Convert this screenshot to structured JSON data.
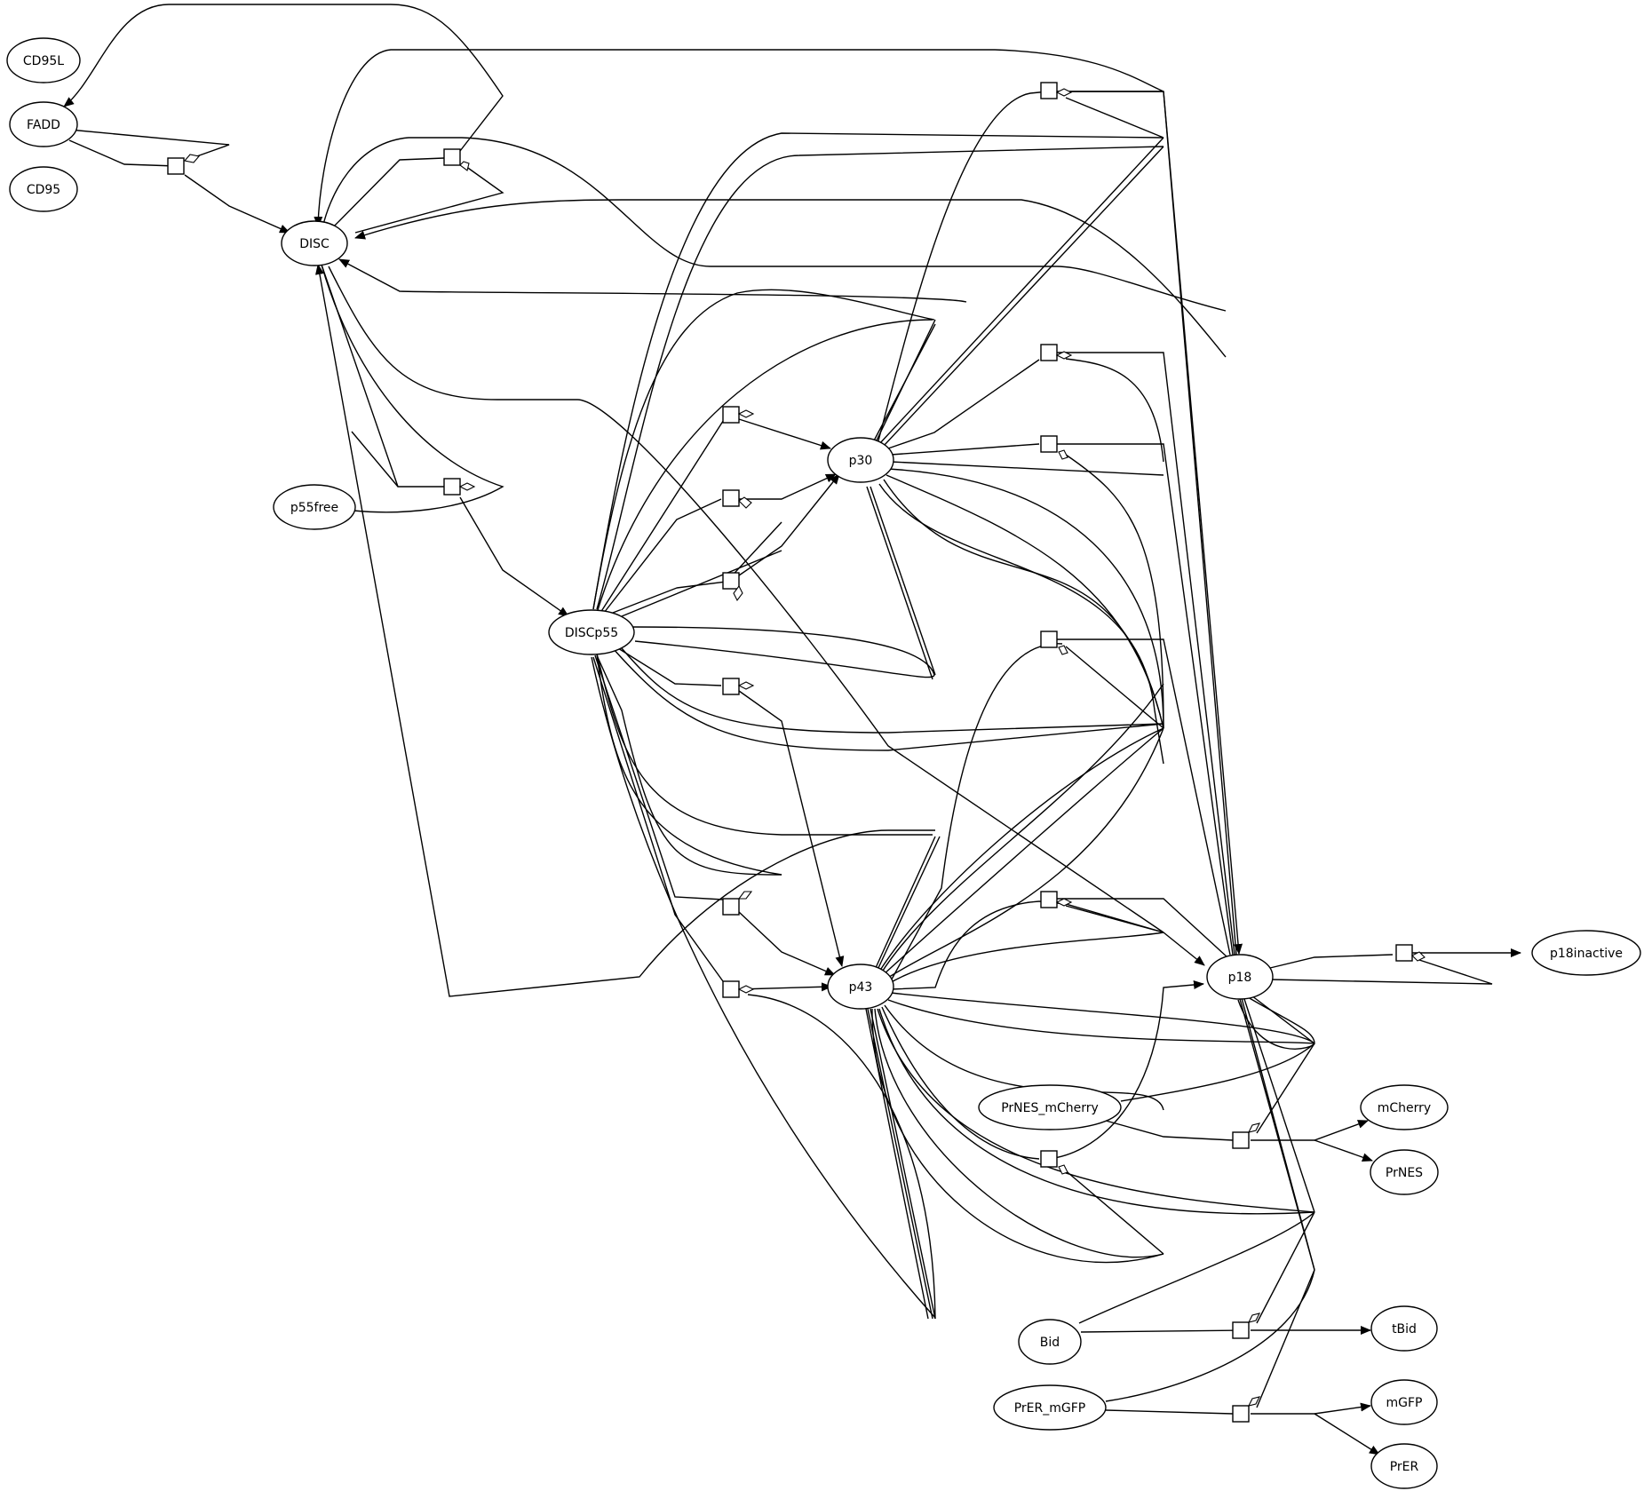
{
  "diagram": {
    "nodes": [
      {
        "id": "CD95L",
        "label": "CD95L"
      },
      {
        "id": "FADD",
        "label": "FADD"
      },
      {
        "id": "CD95",
        "label": "CD95"
      },
      {
        "id": "DISC",
        "label": "DISC"
      },
      {
        "id": "p55free",
        "label": "p55free"
      },
      {
        "id": "DISCp55",
        "label": "DISCp55"
      },
      {
        "id": "p30",
        "label": "p30"
      },
      {
        "id": "p43",
        "label": "p43"
      },
      {
        "id": "p18",
        "label": "p18"
      },
      {
        "id": "p18inactive",
        "label": "p18inactive"
      },
      {
        "id": "PrNES_mCherry",
        "label": "PrNES_mCherry"
      },
      {
        "id": "mCherry",
        "label": "mCherry"
      },
      {
        "id": "PrNES",
        "label": "PrNES"
      },
      {
        "id": "Bid",
        "label": "Bid"
      },
      {
        "id": "tBid",
        "label": "tBid"
      },
      {
        "id": "PrER_mGFP",
        "label": "PrER_mGFP"
      },
      {
        "id": "mGFP",
        "label": "mGFP"
      },
      {
        "id": "PrER",
        "label": "PrER"
      }
    ]
  }
}
